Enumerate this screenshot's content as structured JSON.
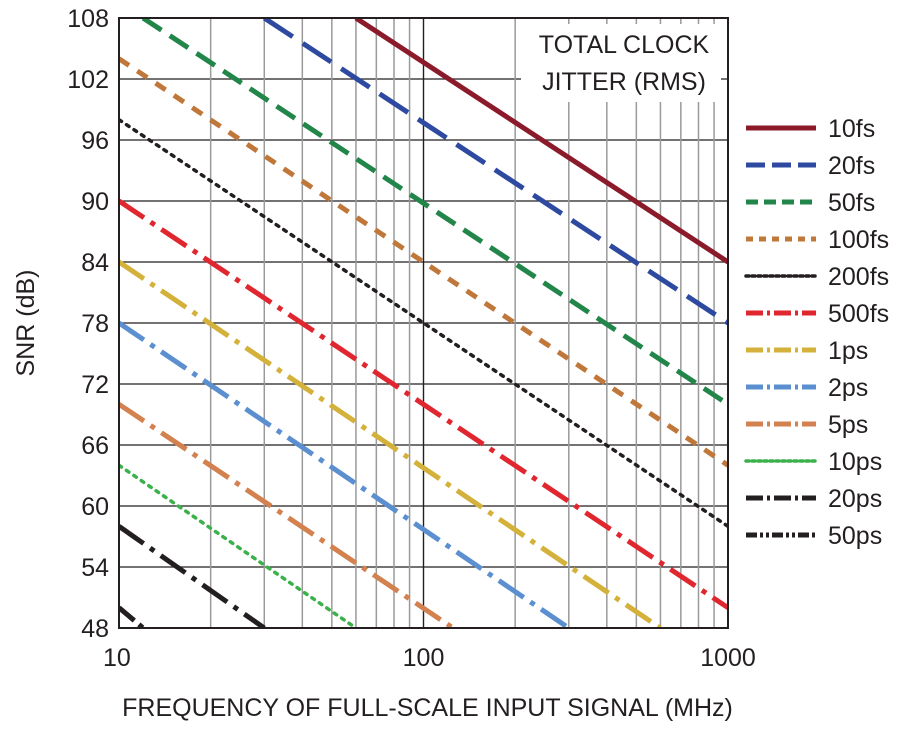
{
  "chart_data": {
    "type": "line",
    "xlabel": "FREQUENCY OF FULL-SCALE INPUT SIGNAL (MHz)",
    "ylabel": "SNR (dB)",
    "x_scale": "log",
    "xlim": [
      10,
      1000
    ],
    "ylim": [
      48,
      108
    ],
    "x_ticks": [
      "10",
      "100",
      "1000"
    ],
    "y_ticks": [
      "48",
      "54",
      "60",
      "66",
      "72",
      "78",
      "84",
      "90",
      "96",
      "102",
      "108"
    ],
    "grid": true,
    "legend_position": "right",
    "annotation": [
      "TOTAL CLOCK",
      "JITTER (RMS)"
    ],
    "series": [
      {
        "name": "10fs",
        "color": "#8b1a2b",
        "style": "solid",
        "points": [
          [
            60,
            108
          ],
          [
            1000,
            84
          ]
        ]
      },
      {
        "name": "20fs",
        "color": "#2e4aa0",
        "style": "long-dash",
        "points": [
          [
            30,
            108
          ],
          [
            1000,
            78
          ]
        ]
      },
      {
        "name": "50fs",
        "color": "#22864a",
        "style": "dash",
        "points": [
          [
            12,
            108
          ],
          [
            1000,
            70
          ]
        ]
      },
      {
        "name": "100fs",
        "color": "#c0773a",
        "style": "short-dash",
        "points": [
          [
            10,
            104
          ],
          [
            1000,
            64
          ]
        ]
      },
      {
        "name": "200fs",
        "color": "#231f20",
        "style": "dot",
        "points": [
          [
            10,
            98
          ],
          [
            1000,
            58
          ]
        ]
      },
      {
        "name": "500fs",
        "color": "#e0262f",
        "style": "dash-dot",
        "points": [
          [
            10,
            90
          ],
          [
            1000,
            50
          ]
        ]
      },
      {
        "name": "1ps",
        "color": "#d4b13a",
        "style": "dash-dot",
        "points": [
          [
            10,
            84
          ],
          [
            600,
            48
          ]
        ]
      },
      {
        "name": "2ps",
        "color": "#5b8fcf",
        "style": "dash-dot",
        "points": [
          [
            10,
            78
          ],
          [
            300,
            48
          ]
        ]
      },
      {
        "name": "5ps",
        "color": "#d2814f",
        "style": "dash-dot",
        "points": [
          [
            10,
            70
          ],
          [
            125,
            48
          ]
        ]
      },
      {
        "name": "10ps",
        "color": "#3bb14a",
        "style": "dot",
        "points": [
          [
            10,
            64
          ],
          [
            60,
            48
          ]
        ]
      },
      {
        "name": "20ps",
        "color": "#231f20",
        "style": "dash-dot",
        "points": [
          [
            10,
            58
          ],
          [
            30,
            48
          ]
        ]
      },
      {
        "name": "50ps",
        "color": "#231f20",
        "style": "dash-dot-dot",
        "points": [
          [
            10,
            50
          ],
          [
            12,
            48
          ]
        ]
      }
    ]
  }
}
